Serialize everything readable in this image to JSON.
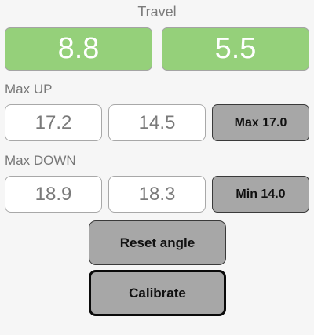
{
  "travel": {
    "title": "Travel",
    "left_value": "8.8",
    "right_value": "5.5"
  },
  "max_up": {
    "label": "Max UP",
    "value1": "17.2",
    "value2": "14.5",
    "button": "Max 17.0"
  },
  "max_down": {
    "label": "Max DOWN",
    "value1": "18.9",
    "value2": "18.3",
    "button": "Min 14.0"
  },
  "actions": {
    "reset": "Reset angle",
    "calibrate": "Calibrate"
  },
  "colors": {
    "green": "#95d07a",
    "button": "#a7a7a7",
    "background": "#f6f6f6"
  }
}
